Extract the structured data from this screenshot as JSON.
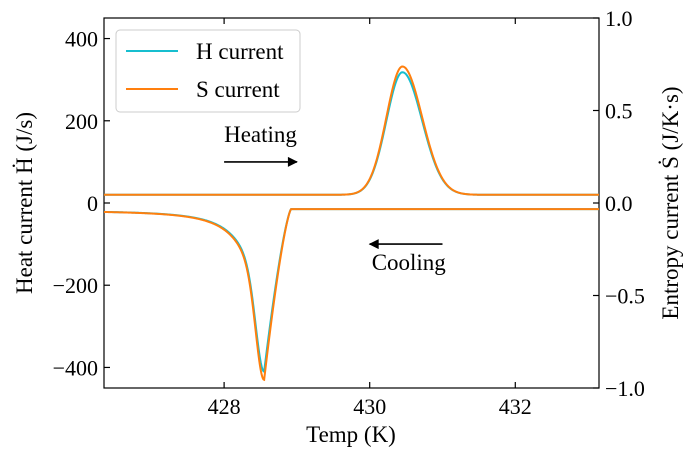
{
  "chart_data": {
    "type": "line",
    "title": "",
    "xlabel": "Temp (K)",
    "ylabel_left": "Heat current Ḣ (J/s)",
    "ylabel_right": "Entropy current Ṡ (J/K·s)",
    "xlim": [
      426.35,
      433.15
    ],
    "ylim_left": [
      -450,
      450
    ],
    "ylim_right": [
      -1.0,
      1.0
    ],
    "x_ticks": [
      428,
      430,
      432
    ],
    "x_tick_labels": [
      "428",
      "430",
      "432"
    ],
    "y_left_ticks": [
      400,
      200,
      0,
      -200,
      -400
    ],
    "y_left_tick_labels": [
      "400",
      "200",
      "0",
      "−200",
      "−400"
    ],
    "y_right_ticks": [
      1.0,
      0.5,
      0.0,
      -0.5,
      -1.0
    ],
    "y_right_tick_labels": [
      "1.0",
      "0.5",
      "0.0",
      "−0.5",
      "−1.0"
    ],
    "legend": {
      "position": "top-left",
      "entries": [
        {
          "name": "H current",
          "color": "#17becf"
        },
        {
          "name": "S current",
          "color": "#ff7f0e"
        }
      ]
    },
    "series": [
      {
        "name": "H current",
        "color": "#17becf",
        "heating": {
          "baseline": 20,
          "peak_x": 430.45,
          "peak_y": 318
        },
        "cooling": {
          "baseline_left": -18,
          "baseline_right": -15,
          "peak_x": 428.55,
          "peak_y": -410
        }
      },
      {
        "name": "S current",
        "color": "#ff7f0e",
        "heating": {
          "baseline": 20,
          "peak_x": 430.45,
          "peak_y": 332
        },
        "cooling": {
          "baseline_left": -18,
          "baseline_right": -15,
          "peak_x": 428.55,
          "peak_y": -430
        }
      }
    ],
    "annotations": [
      {
        "text": "Heating",
        "direction": "right",
        "arrow_from_x": 428.0,
        "arrow_to_x": 429.0,
        "arrow_y": 100
      },
      {
        "text": "Cooling",
        "direction": "left",
        "arrow_from_x": 431.0,
        "arrow_to_x": 430.0,
        "arrow_y": -100
      }
    ]
  }
}
